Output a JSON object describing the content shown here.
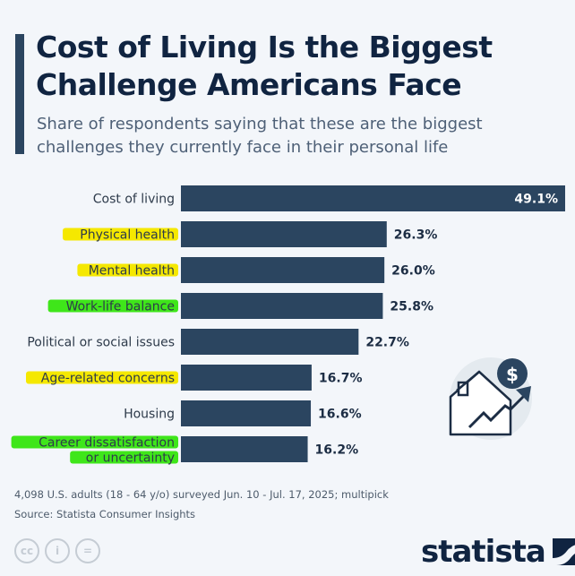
{
  "header": {
    "title": "Cost of Living Is the Biggest Challenge Americans Face",
    "subtitle": "Share of respondents saying that these are the biggest challenges they currently face in their personal life"
  },
  "colors": {
    "bar": "#2b4560",
    "highlight_yellow": "#f5e800",
    "highlight_green": "#3fe61a",
    "label": "#2d3a4a",
    "value": "#1c2d44"
  },
  "chart_data": {
    "type": "bar",
    "orientation": "horizontal",
    "title": "Cost of Living Is the Biggest Challenge Americans Face",
    "subtitle": "Share of respondents saying that these are the biggest challenges they currently face in their personal life",
    "categories": [
      "Cost of living",
      "Physical health",
      "Mental health",
      "Work-life balance",
      "Political or social issues",
      "Age-related concerns",
      "Housing",
      "Career dissatisfaction or uncertainty"
    ],
    "label_lines": [
      [
        "Cost of living"
      ],
      [
        "Physical health"
      ],
      [
        "Mental health"
      ],
      [
        "Work-life balance"
      ],
      [
        "Political or social issues"
      ],
      [
        "Age-related concerns"
      ],
      [
        "Housing"
      ],
      [
        "Career dissatisfaction",
        "or uncertainty"
      ]
    ],
    "values": [
      49.1,
      26.3,
      26.0,
      25.8,
      22.7,
      16.7,
      16.6,
      16.2
    ],
    "value_labels": [
      "49.1%",
      "26.3%",
      "26.0%",
      "25.8%",
      "22.7%",
      "16.7%",
      "16.6%",
      "16.2%"
    ],
    "highlights": [
      "none",
      "yellow",
      "yellow",
      "green",
      "none",
      "yellow",
      "none",
      "green"
    ],
    "unit": "%",
    "xlim": [
      0,
      49.1
    ],
    "grid": false,
    "legend": "none"
  },
  "icon": "house-price-rising-icon",
  "footer": {
    "note": "4,098 U.S. adults (18 - 64 y/o) surveyed Jun. 10 - Jul. 17, 2025; multipick",
    "source": "Source: Statista Consumer Insights",
    "license_icons": [
      "cc-icon",
      "attribution-icon",
      "no-derivatives-icon"
    ],
    "license_glyphs": [
      "cc",
      "i",
      "="
    ],
    "brand": "statista"
  }
}
